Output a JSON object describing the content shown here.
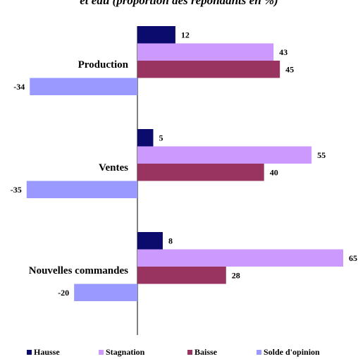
{
  "chart_data": {
    "type": "bar",
    "orientation": "horizontal",
    "title": "et eau (proportion des répondants en %)",
    "categories": [
      "Production",
      "Ventes",
      "Nouvelles commandes"
    ],
    "series": [
      {
        "name": "Hausse",
        "color": "#0b0b6e",
        "values": [
          12,
          5,
          8
        ]
      },
      {
        "name": "Stagnation",
        "color": "#cc99ff",
        "values": [
          43,
          55,
          65
        ]
      },
      {
        "name": "Baisse",
        "color": "#99335f",
        "values": [
          45,
          40,
          28
        ]
      },
      {
        "name": "Solde d'opinion",
        "color": "#9999ff",
        "values": [
          -34,
          -35,
          -20
        ]
      }
    ],
    "xlim": [
      -35,
      65
    ],
    "data_labels": true,
    "legend_position": "bottom",
    "grid": false
  }
}
